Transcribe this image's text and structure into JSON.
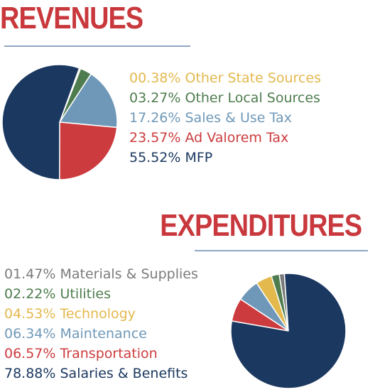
{
  "headings": {
    "revenues": "REVENUES",
    "expenditures": "EXPENDITURES"
  },
  "chart_data": [
    {
      "type": "pie",
      "title": "REVENUES",
      "slices": [
        {
          "label": "Other State Sources",
          "value": 0.38,
          "text": "00.38% Other State Sources",
          "color": "#e3b94e"
        },
        {
          "label": "Other Local Sources",
          "value": 3.27,
          "text": "03.27% Other Local Sources",
          "color": "#4e7c4e"
        },
        {
          "label": "Sales & Use Tax",
          "value": 17.26,
          "text": "17.26% Sales & Use Tax",
          "color": "#6f98b8"
        },
        {
          "label": "Ad Valorem Tax",
          "value": 23.57,
          "text": "23.57% Ad Valorem Tax",
          "color": "#cc3b3e"
        },
        {
          "label": "MFP",
          "value": 55.52,
          "text": "55.52% MFP",
          "color": "#1b3860"
        }
      ]
    },
    {
      "type": "pie",
      "title": "EXPENDITURES",
      "slices": [
        {
          "label": "Materials & Supplies",
          "value": 1.47,
          "text": "01.47% Materials & Supplies",
          "color": "#7b7b7b"
        },
        {
          "label": "Utilities",
          "value": 2.22,
          "text": "02.22% Utilities",
          "color": "#4e7c4e"
        },
        {
          "label": "Technology",
          "value": 4.53,
          "text": "04.53% Technology",
          "color": "#e3b94e"
        },
        {
          "label": "Maintenance",
          "value": 6.34,
          "text": "06.34% Maintenance",
          "color": "#6f98b8"
        },
        {
          "label": "Transportation",
          "value": 6.57,
          "text": "06.57% Transportation",
          "color": "#cc3b3e"
        },
        {
          "label": "Salaries & Benefits",
          "value": 78.88,
          "text": "78.88% Salaries & Benefits",
          "color": "#1b3860"
        }
      ]
    }
  ]
}
